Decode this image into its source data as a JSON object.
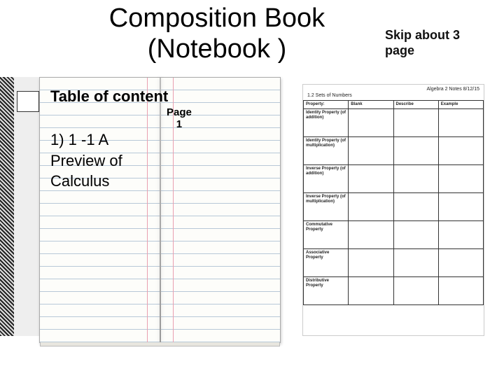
{
  "title": {
    "line1": "Composition Book",
    "line2": "(Notebook )"
  },
  "side_note": "Skip about 3 page",
  "notebook": {
    "toc_heading": "Table of content",
    "toc_entry": "1) 1 -1 A Preview of Calculus",
    "page_label_top": "Page",
    "page_label_num": "1"
  },
  "worksheet": {
    "course_label": "Algebra 2 Notes 8/12/15",
    "section_label": "1.2 Sets of Numbers",
    "columns": [
      "Property:",
      "Blank",
      "Describe",
      "Example"
    ],
    "rows": [
      "Identity Property (of addition)",
      "Identity Property (of multiplication)",
      "Inverse Property (of addition)",
      "Inverse Property (of multiplication)",
      "Commutative Property",
      "Associative Property",
      "Distributive Property"
    ]
  },
  "colors": {
    "background": "#ffffff",
    "text": "#000000",
    "rule_line": "#b8c8d8",
    "margin_line": "#e9a0b0",
    "table_border": "#333333"
  }
}
